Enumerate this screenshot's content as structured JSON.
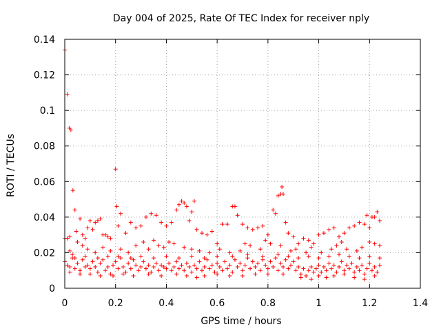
{
  "chart_data": {
    "type": "scatter",
    "title": "Day 004 of 2025, Rate Of TEC Index for receiver nply",
    "xlabel": "GPS time / hours",
    "ylabel": "ROTI / TECUs",
    "xlim": [
      0,
      1.4
    ],
    "ylim": [
      0,
      0.14
    ],
    "x_ticks": [
      "0",
      "0.2",
      "0.4",
      "0.6",
      "0.8",
      "1",
      "1.2",
      "1.4"
    ],
    "y_ticks": [
      "0",
      "0.02",
      "0.04",
      "0.06",
      "0.08",
      "0.1",
      "0.12",
      "0.14"
    ],
    "grid": true,
    "marker": "+",
    "color": "#ff0000",
    "series": [
      {
        "points": [
          [
            0.0,
            0.134
          ],
          [
            0.01,
            0.109
          ],
          [
            0.018,
            0.09
          ],
          [
            0.024,
            0.089
          ],
          [
            0.032,
            0.055
          ],
          [
            0.04,
            0.044
          ],
          [
            0.2,
            0.067
          ],
          [
            0.205,
            0.046
          ],
          [
            0.22,
            0.042
          ],
          [
            0.0,
            0.028
          ],
          [
            0.01,
            0.028
          ],
          [
            0.02,
            0.029
          ],
          [
            0.03,
            0.019
          ],
          [
            0.045,
            0.032
          ],
          [
            0.06,
            0.039
          ],
          [
            0.07,
            0.03
          ],
          [
            0.08,
            0.028
          ],
          [
            0.09,
            0.034
          ],
          [
            0.1,
            0.038
          ],
          [
            0.11,
            0.033
          ],
          [
            0.12,
            0.037
          ],
          [
            0.13,
            0.038
          ],
          [
            0.14,
            0.039
          ],
          [
            0.15,
            0.03
          ],
          [
            0.16,
            0.03
          ],
          [
            0.17,
            0.029
          ],
          [
            0.18,
            0.028
          ],
          [
            0.21,
            0.035
          ],
          [
            0.24,
            0.031
          ],
          [
            0.26,
            0.037
          ],
          [
            0.28,
            0.034
          ],
          [
            0.3,
            0.035
          ],
          [
            0.32,
            0.04
          ],
          [
            0.34,
            0.042
          ],
          [
            0.36,
            0.041
          ],
          [
            0.38,
            0.037
          ],
          [
            0.4,
            0.035
          ],
          [
            0.42,
            0.037
          ],
          [
            0.44,
            0.044
          ],
          [
            0.45,
            0.047
          ],
          [
            0.46,
            0.049
          ],
          [
            0.47,
            0.048
          ],
          [
            0.48,
            0.046
          ],
          [
            0.49,
            0.038
          ],
          [
            0.5,
            0.043
          ],
          [
            0.51,
            0.049
          ],
          [
            0.52,
            0.033
          ],
          [
            0.54,
            0.031
          ],
          [
            0.56,
            0.03
          ],
          [
            0.58,
            0.032
          ],
          [
            0.6,
            0.025
          ],
          [
            0.62,
            0.036
          ],
          [
            0.64,
            0.036
          ],
          [
            0.66,
            0.046
          ],
          [
            0.67,
            0.046
          ],
          [
            0.68,
            0.041
          ],
          [
            0.7,
            0.036
          ],
          [
            0.72,
            0.034
          ],
          [
            0.74,
            0.033
          ],
          [
            0.76,
            0.034
          ],
          [
            0.78,
            0.035
          ],
          [
            0.8,
            0.03
          ],
          [
            0.82,
            0.044
          ],
          [
            0.83,
            0.042
          ],
          [
            0.84,
            0.052
          ],
          [
            0.85,
            0.053
          ],
          [
            0.855,
            0.057
          ],
          [
            0.86,
            0.053
          ],
          [
            0.87,
            0.037
          ],
          [
            0.88,
            0.031
          ],
          [
            0.9,
            0.029
          ],
          [
            0.92,
            0.025
          ],
          [
            0.94,
            0.028
          ],
          [
            0.96,
            0.027
          ],
          [
            0.98,
            0.025
          ],
          [
            1.0,
            0.03
          ],
          [
            1.02,
            0.031
          ],
          [
            1.04,
            0.033
          ],
          [
            1.06,
            0.034
          ],
          [
            1.08,
            0.029
          ],
          [
            1.1,
            0.031
          ],
          [
            1.12,
            0.034
          ],
          [
            1.14,
            0.035
          ],
          [
            1.16,
            0.037
          ],
          [
            1.18,
            0.036
          ],
          [
            1.19,
            0.041
          ],
          [
            1.2,
            0.034
          ],
          [
            1.21,
            0.04
          ],
          [
            1.22,
            0.04
          ],
          [
            1.23,
            0.043
          ],
          [
            1.24,
            0.038
          ],
          [
            0.02,
            0.021
          ],
          [
            0.05,
            0.026
          ],
          [
            0.07,
            0.024
          ],
          [
            0.09,
            0.022
          ],
          [
            0.12,
            0.02
          ],
          [
            0.15,
            0.023
          ],
          [
            0.18,
            0.021
          ],
          [
            0.22,
            0.022
          ],
          [
            0.25,
            0.02
          ],
          [
            0.28,
            0.024
          ],
          [
            0.31,
            0.026
          ],
          [
            0.33,
            0.022
          ],
          [
            0.35,
            0.027
          ],
          [
            0.37,
            0.024
          ],
          [
            0.39,
            0.023
          ],
          [
            0.41,
            0.026
          ],
          [
            0.43,
            0.025
          ],
          [
            0.47,
            0.023
          ],
          [
            0.5,
            0.022
          ],
          [
            0.53,
            0.021
          ],
          [
            0.57,
            0.02
          ],
          [
            0.61,
            0.022
          ],
          [
            0.65,
            0.02
          ],
          [
            0.69,
            0.021
          ],
          [
            0.71,
            0.025
          ],
          [
            0.73,
            0.024
          ],
          [
            0.77,
            0.022
          ],
          [
            0.79,
            0.027
          ],
          [
            0.81,
            0.025
          ],
          [
            0.85,
            0.024
          ],
          [
            0.89,
            0.021
          ],
          [
            0.91,
            0.022
          ],
          [
            0.95,
            0.02
          ],
          [
            0.97,
            0.023
          ],
          [
            1.01,
            0.02
          ],
          [
            1.05,
            0.022
          ],
          [
            1.07,
            0.024
          ],
          [
            1.09,
            0.026
          ],
          [
            1.11,
            0.022
          ],
          [
            1.15,
            0.021
          ],
          [
            1.17,
            0.023
          ],
          [
            1.2,
            0.026
          ],
          [
            1.22,
            0.025
          ],
          [
            1.24,
            0.024
          ],
          [
            0.0,
            0.015
          ],
          [
            0.01,
            0.013
          ],
          [
            0.02,
            0.012
          ],
          [
            0.03,
            0.017
          ],
          [
            0.04,
            0.011
          ],
          [
            0.05,
            0.014
          ],
          [
            0.06,
            0.01
          ],
          [
            0.07,
            0.016
          ],
          [
            0.08,
            0.012
          ],
          [
            0.09,
            0.013
          ],
          [
            0.1,
            0.011
          ],
          [
            0.11,
            0.015
          ],
          [
            0.12,
            0.012
          ],
          [
            0.13,
            0.009
          ],
          [
            0.14,
            0.014
          ],
          [
            0.15,
            0.016
          ],
          [
            0.16,
            0.01
          ],
          [
            0.17,
            0.012
          ],
          [
            0.18,
            0.008
          ],
          [
            0.19,
            0.013
          ],
          [
            0.2,
            0.015
          ],
          [
            0.21,
            0.011
          ],
          [
            0.22,
            0.017
          ],
          [
            0.23,
            0.012
          ],
          [
            0.24,
            0.009
          ],
          [
            0.25,
            0.014
          ],
          [
            0.26,
            0.011
          ],
          [
            0.27,
            0.016
          ],
          [
            0.28,
            0.013
          ],
          [
            0.29,
            0.01
          ],
          [
            0.3,
            0.012
          ],
          [
            0.31,
            0.015
          ],
          [
            0.32,
            0.011
          ],
          [
            0.33,
            0.013
          ],
          [
            0.34,
            0.009
          ],
          [
            0.35,
            0.012
          ],
          [
            0.36,
            0.014
          ],
          [
            0.37,
            0.01
          ],
          [
            0.38,
            0.013
          ],
          [
            0.39,
            0.012
          ],
          [
            0.4,
            0.011
          ],
          [
            0.41,
            0.014
          ],
          [
            0.42,
            0.01
          ],
          [
            0.43,
            0.012
          ],
          [
            0.44,
            0.015
          ],
          [
            0.45,
            0.011
          ],
          [
            0.46,
            0.013
          ],
          [
            0.47,
            0.01
          ],
          [
            0.48,
            0.014
          ],
          [
            0.49,
            0.012
          ],
          [
            0.5,
            0.009
          ],
          [
            0.51,
            0.013
          ],
          [
            0.52,
            0.011
          ],
          [
            0.53,
            0.015
          ],
          [
            0.54,
            0.01
          ],
          [
            0.55,
            0.012
          ],
          [
            0.56,
            0.016
          ],
          [
            0.57,
            0.011
          ],
          [
            0.58,
            0.013
          ],
          [
            0.59,
            0.009
          ],
          [
            0.6,
            0.014
          ],
          [
            0.61,
            0.012
          ],
          [
            0.62,
            0.01
          ],
          [
            0.63,
            0.015
          ],
          [
            0.64,
            0.011
          ],
          [
            0.65,
            0.013
          ],
          [
            0.66,
            0.009
          ],
          [
            0.67,
            0.016
          ],
          [
            0.68,
            0.012
          ],
          [
            0.69,
            0.014
          ],
          [
            0.7,
            0.01
          ],
          [
            0.71,
            0.013
          ],
          [
            0.72,
            0.017
          ],
          [
            0.73,
            0.011
          ],
          [
            0.74,
            0.015
          ],
          [
            0.75,
            0.012
          ],
          [
            0.76,
            0.014
          ],
          [
            0.77,
            0.01
          ],
          [
            0.78,
            0.016
          ],
          [
            0.79,
            0.013
          ],
          [
            0.8,
            0.011
          ],
          [
            0.81,
            0.015
          ],
          [
            0.82,
            0.012
          ],
          [
            0.83,
            0.017
          ],
          [
            0.84,
            0.01
          ],
          [
            0.85,
            0.014
          ],
          [
            0.86,
            0.012
          ],
          [
            0.87,
            0.016
          ],
          [
            0.88,
            0.011
          ],
          [
            0.89,
            0.013
          ],
          [
            0.9,
            0.015
          ],
          [
            0.91,
            0.01
          ],
          [
            0.92,
            0.012
          ],
          [
            0.93,
            0.008
          ],
          [
            0.94,
            0.011
          ],
          [
            0.95,
            0.007
          ],
          [
            0.96,
            0.01
          ],
          [
            0.97,
            0.012
          ],
          [
            0.98,
            0.009
          ],
          [
            0.99,
            0.011
          ],
          [
            1.0,
            0.013
          ],
          [
            1.01,
            0.009
          ],
          [
            1.02,
            0.012
          ],
          [
            1.03,
            0.01
          ],
          [
            1.04,
            0.014
          ],
          [
            1.05,
            0.011
          ],
          [
            1.06,
            0.013
          ],
          [
            1.07,
            0.009
          ],
          [
            1.08,
            0.012
          ],
          [
            1.09,
            0.015
          ],
          [
            1.1,
            0.01
          ],
          [
            1.11,
            0.013
          ],
          [
            1.12,
            0.011
          ],
          [
            1.13,
            0.014
          ],
          [
            1.14,
            0.009
          ],
          [
            1.15,
            0.012
          ],
          [
            1.16,
            0.01
          ],
          [
            1.17,
            0.013
          ],
          [
            1.18,
            0.008
          ],
          [
            1.19,
            0.011
          ],
          [
            1.2,
            0.014
          ],
          [
            1.21,
            0.01
          ],
          [
            1.22,
            0.012
          ],
          [
            1.23,
            0.009
          ],
          [
            1.24,
            0.013
          ],
          [
            0.02,
            0.009
          ],
          [
            0.06,
            0.008
          ],
          [
            0.1,
            0.008
          ],
          [
            0.14,
            0.007
          ],
          [
            0.19,
            0.007
          ],
          [
            0.23,
            0.008
          ],
          [
            0.27,
            0.007
          ],
          [
            0.33,
            0.008
          ],
          [
            0.38,
            0.007
          ],
          [
            0.44,
            0.008
          ],
          [
            0.48,
            0.007
          ],
          [
            0.52,
            0.006
          ],
          [
            0.55,
            0.007
          ],
          [
            0.6,
            0.008
          ],
          [
            0.65,
            0.007
          ],
          [
            0.7,
            0.007
          ],
          [
            0.75,
            0.008
          ],
          [
            0.8,
            0.008
          ],
          [
            0.86,
            0.008
          ],
          [
            0.93,
            0.006
          ],
          [
            0.97,
            0.005
          ],
          [
            1.0,
            0.007
          ],
          [
            1.03,
            0.006
          ],
          [
            1.06,
            0.007
          ],
          [
            1.1,
            0.008
          ],
          [
            1.14,
            0.006
          ],
          [
            1.18,
            0.005
          ],
          [
            1.22,
            0.007
          ],
          [
            0.04,
            0.017
          ],
          [
            0.08,
            0.018
          ],
          [
            0.13,
            0.017
          ],
          [
            0.17,
            0.018
          ],
          [
            0.21,
            0.018
          ],
          [
            0.26,
            0.017
          ],
          [
            0.3,
            0.018
          ],
          [
            0.35,
            0.017
          ],
          [
            0.4,
            0.018
          ],
          [
            0.45,
            0.017
          ],
          [
            0.5,
            0.018
          ],
          [
            0.55,
            0.017
          ],
          [
            0.6,
            0.018
          ],
          [
            0.66,
            0.018
          ],
          [
            0.72,
            0.019
          ],
          [
            0.78,
            0.018
          ],
          [
            0.84,
            0.019
          ],
          [
            0.88,
            0.018
          ],
          [
            0.92,
            0.017
          ],
          [
            0.96,
            0.018
          ],
          [
            1.0,
            0.017
          ],
          [
            1.04,
            0.018
          ],
          [
            1.08,
            0.019
          ],
          [
            1.12,
            0.018
          ],
          [
            1.16,
            0.017
          ],
          [
            1.2,
            0.018
          ],
          [
            1.24,
            0.017
          ]
        ]
      }
    ]
  }
}
